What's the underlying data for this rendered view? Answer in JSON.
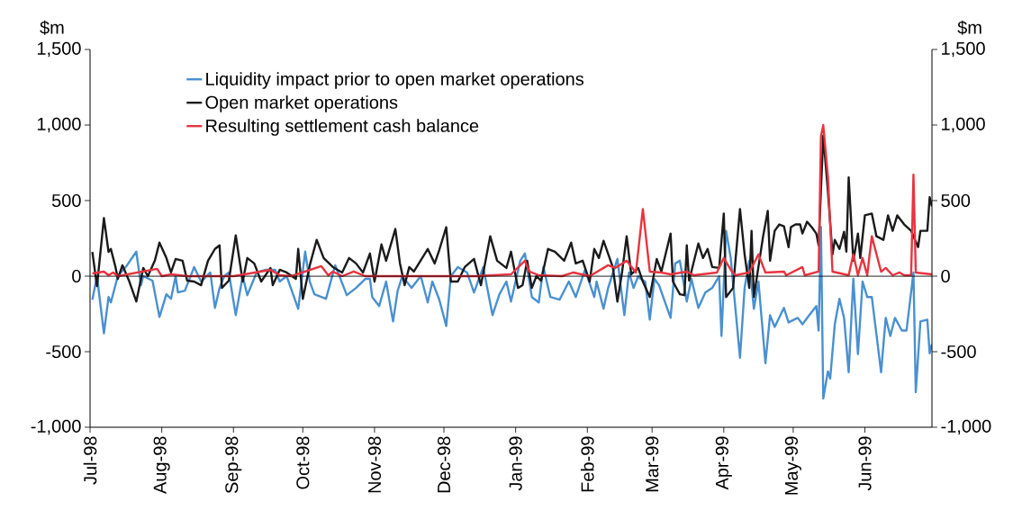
{
  "chart_data": {
    "type": "line",
    "ylabel": "$m",
    "y2label": "$m",
    "xlim": [
      "1998-07-01",
      "1999-06-30"
    ],
    "xticks": [
      {
        "value": "1998-07-01",
        "label": "Jul-98"
      },
      {
        "value": "1998-08-01",
        "label": "Aug-98"
      },
      {
        "value": "1998-09-01",
        "label": "Sep-98"
      },
      {
        "value": "1998-10-01",
        "label": "Oct-98"
      },
      {
        "value": "1998-11-01",
        "label": "Nov-98"
      },
      {
        "value": "1998-12-01",
        "label": "Dec-98"
      },
      {
        "value": "1999-01-01",
        "label": "Jan-99"
      },
      {
        "value": "1999-02-01",
        "label": "Feb-99"
      },
      {
        "value": "1999-03-01",
        "label": "Mar-99"
      },
      {
        "value": "1999-04-01",
        "label": "Apr-99"
      },
      {
        "value": "1999-05-01",
        "label": "May-99"
      },
      {
        "value": "1999-06-01",
        "label": "Jun-99"
      }
    ],
    "ylim": [
      -1000,
      1500
    ],
    "yticks": [
      {
        "value": -1000,
        "label": "-1,000"
      },
      -500,
      0,
      500,
      {
        "value": 1000,
        "label": "1,000"
      },
      {
        "value": 1500,
        "label": "1,500"
      }
    ],
    "y2lim": [
      -1000,
      1500
    ],
    "y2ticks": [
      {
        "value": -1000,
        "label": "-1,000"
      },
      -500,
      0,
      500,
      {
        "value": 1000,
        "label": "1,000"
      },
      {
        "value": 1500,
        "label": "1,500"
      }
    ],
    "ref_lines": [
      {
        "axis": "y",
        "value": 0,
        "color": "#000000"
      }
    ],
    "legend": "top left",
    "marker": "none",
    "line_style": "solid",
    "grid": false,
    "series": [
      {
        "name": "Liquidity impact prior to open market operations",
        "color": "#4a90d0",
        "x": [
          "1998-07-02",
          "1998-07-04",
          "1998-07-07",
          "1998-07-09",
          "1998-07-10",
          "1998-07-13",
          "1998-07-17",
          "1998-07-21",
          "1998-07-23",
          "1998-07-24",
          "1998-07-28",
          "1998-07-31",
          "1998-08-03",
          "1998-08-05",
          "1998-08-07",
          "1998-08-08",
          "1998-08-11",
          "1998-08-15",
          "1998-08-18",
          "1998-08-22",
          "1998-08-24",
          "1998-08-26",
          "1998-08-28",
          "1998-08-30",
          "1998-09-02",
          "1998-09-05",
          "1998-09-07",
          "1998-09-11",
          "1998-09-15",
          "1998-09-19",
          "1998-09-21",
          "1998-09-24",
          "1998-09-29",
          "1998-10-02",
          "1998-10-04",
          "1998-10-06",
          "1998-10-11",
          "1998-10-15",
          "1998-10-20",
          "1998-10-24",
          "1998-10-28",
          "1998-10-30",
          "1998-10-31",
          "1998-11-03",
          "1998-11-06",
          "1998-11-09",
          "1998-11-11",
          "1998-11-13",
          "1998-11-17",
          "1998-11-21",
          "1998-11-24",
          "1998-11-26",
          "1998-11-29",
          "1998-12-02",
          "1998-12-04",
          "1998-12-07",
          "1998-12-11",
          "1998-12-14",
          "1998-12-18",
          "1998-12-22",
          "1998-12-25",
          "1998-12-28",
          "1998-12-30",
          "1999-01-03",
          "1999-01-05",
          "1999-01-08",
          "1999-01-11",
          "1999-01-13",
          "1999-01-16",
          "1999-01-20",
          "1999-01-24",
          "1999-01-27",
          "1999-01-31",
          "1999-02-04",
          "1999-02-05",
          "1999-02-08",
          "1999-02-10",
          "1999-02-14",
          "1999-02-17",
          "1999-02-19",
          "1999-02-21",
          "1999-02-23",
          "1999-02-24",
          "1999-02-26",
          "1999-02-28",
          "1999-03-02",
          "1999-03-04",
          "1999-03-09",
          "1999-03-11",
          "1999-03-13",
          "1999-03-16",
          "1999-03-18",
          "1999-03-21",
          "1999-03-24",
          "1999-03-27",
          "1999-03-30",
          "1999-03-31",
          "1999-04-02",
          "1999-04-04",
          "1999-04-08",
          "1999-04-10",
          "1999-04-12",
          "1999-04-14",
          "1999-04-16",
          "1999-04-19",
          "1999-04-21",
          "1999-04-23",
          "1999-04-27",
          "1999-04-29",
          "1999-05-03",
          "1999-05-05",
          "1999-05-08",
          "1999-05-11",
          "1999-05-12",
          "1999-05-13",
          "1999-05-14",
          "1999-05-16",
          "1999-05-17",
          "1999-05-19",
          "1999-05-21",
          "1999-05-23",
          "1999-05-25",
          "1999-05-27",
          "1999-05-29",
          "1999-05-31",
          "1999-06-02",
          "1999-06-04",
          "1999-06-08",
          "1999-06-10",
          "1999-06-12",
          "1999-06-14",
          "1999-06-17",
          "1999-06-19",
          "1999-06-22",
          "1999-06-23",
          "1999-06-25",
          "1999-06-28",
          "1999-06-29",
          "1999-06-30"
        ],
        "values": [
          -156,
          0,
          -378,
          -138,
          -174,
          0,
          72,
          162,
          -60,
          0,
          -30,
          -270,
          -120,
          -150,
          0,
          -108,
          -96,
          60,
          -36,
          24,
          -210,
          -78,
          0,
          24,
          -258,
          0,
          -126,
          24,
          42,
          42,
          -36,
          0,
          -216,
          162,
          -36,
          -120,
          -150,
          72,
          -126,
          -78,
          -18,
          -18,
          -138,
          -198,
          -36,
          -300,
          -96,
          0,
          -78,
          0,
          -174,
          -36,
          -156,
          -330,
          0,
          60,
          24,
          -108,
          60,
          -258,
          -120,
          -36,
          -168,
          102,
          150,
          -138,
          -174,
          60,
          -138,
          -156,
          -36,
          -138,
          42,
          -138,
          -36,
          -216,
          -78,
          114,
          -258,
          24,
          -78,
          0,
          -18,
          -36,
          -288,
          -18,
          -60,
          -276,
          84,
          102,
          -168,
          -18,
          -210,
          -108,
          -78,
          0,
          -396,
          300,
          120,
          -540,
          -78,
          102,
          -216,
          -36,
          -576,
          -258,
          -336,
          -210,
          -306,
          -276,
          -318,
          -258,
          -198,
          -360,
          324,
          -810,
          -630,
          -678,
          -318,
          -150,
          -276,
          -636,
          -18,
          -516,
          -36,
          -138,
          -138,
          -636,
          -276,
          -396,
          -276,
          -360,
          -360,
          24,
          -768,
          -300,
          -288,
          -510,
          -450
        ]
      },
      {
        "name": "Open market operations",
        "color": "#1a1a1a",
        "x": [
          "1998-07-02",
          "1998-07-04",
          "1998-07-07",
          "1998-07-09",
          "1998-07-10",
          "1998-07-12",
          "1998-07-13",
          "1998-07-15",
          "1998-07-18",
          "1998-07-21",
          "1998-07-24",
          "1998-07-26",
          "1998-07-29",
          "1998-07-31",
          "1998-08-03",
          "1998-08-05",
          "1998-08-07",
          "1998-08-10",
          "1998-08-12",
          "1998-08-15",
          "1998-08-18",
          "1998-08-21",
          "1998-08-24",
          "1998-08-26",
          "1998-08-27",
          "1998-08-30",
          "1998-09-02",
          "1998-09-05",
          "1998-09-07",
          "1998-09-10",
          "1998-09-13",
          "1998-09-17",
          "1998-09-18",
          "1998-09-21",
          "1998-09-24",
          "1998-09-28",
          "1998-09-29",
          "1998-10-01",
          "1998-10-04",
          "1998-10-07",
          "1998-10-10",
          "1998-10-14",
          "1998-10-18",
          "1998-10-21",
          "1998-10-24",
          "1998-10-27",
          "1998-10-30",
          "1998-11-01",
          "1998-11-04",
          "1998-11-06",
          "1998-11-10",
          "1998-11-12",
          "1998-11-14",
          "1998-11-16",
          "1998-11-18",
          "1998-11-24",
          "1998-11-27",
          "1998-11-29",
          "1998-12-02",
          "1998-12-04",
          "1998-12-07",
          "1998-12-10",
          "1998-12-14",
          "1998-12-17",
          "1998-12-21",
          "1998-12-24",
          "1998-12-28",
          "1998-12-30",
          "1999-01-02",
          "1999-01-04",
          "1999-01-06",
          "1999-01-08",
          "1999-01-10",
          "1999-01-12",
          "1999-01-15",
          "1999-01-18",
          "1999-01-22",
          "1999-01-25",
          "1999-01-27",
          "1999-01-30",
          "1999-02-02",
          "1999-02-04",
          "1999-02-06",
          "1999-02-08",
          "1999-02-12",
          "1999-02-14",
          "1999-02-16",
          "1999-02-18",
          "1999-02-20",
          "1999-02-23",
          "1999-02-25",
          "1999-02-28",
          "1999-03-03",
          "1999-03-05",
          "1999-03-09",
          "1999-03-10",
          "1999-03-13",
          "1999-03-15",
          "1999-03-16",
          "1999-03-17",
          "1999-03-21",
          "1999-03-23",
          "1999-03-25",
          "1999-03-27",
          "1999-03-30",
          "1999-04-01",
          "1999-04-02",
          "1999-04-05",
          "1999-04-08",
          "1999-04-10",
          "1999-04-12",
          "1999-04-13",
          "1999-04-14",
          "1999-04-18",
          "1999-04-20",
          "1999-04-21",
          "1999-04-23",
          "1999-04-25",
          "1999-04-27",
          "1999-04-29",
          "1999-04-30",
          "1999-05-02",
          "1999-05-04",
          "1999-05-05",
          "1999-05-07",
          "1999-05-09",
          "1999-05-11",
          "1999-05-12",
          "1999-05-14",
          "1999-05-16",
          "1999-05-18",
          "1999-05-19",
          "1999-05-21",
          "1999-05-23",
          "1999-05-24",
          "1999-05-25",
          "1999-05-27",
          "1999-05-29",
          "1999-05-30",
          "1999-06-01",
          "1999-06-04",
          "1999-06-06",
          "1999-06-09",
          "1999-06-11",
          "1999-06-13",
          "1999-06-15",
          "1999-06-18",
          "1999-06-21",
          "1999-06-24",
          "1999-06-25",
          "1999-06-28",
          "1999-06-29",
          "1999-06-30"
        ],
        "values": [
          160,
          -66,
          384,
          160,
          180,
          60,
          -18,
          72,
          -36,
          -168,
          54,
          0,
          102,
          222,
          120,
          24,
          114,
          102,
          -30,
          -36,
          -60,
          102,
          180,
          204,
          -78,
          -30,
          270,
          -36,
          120,
          84,
          -36,
          54,
          -60,
          42,
          24,
          -18,
          180,
          -150,
          72,
          240,
          120,
          60,
          24,
          120,
          84,
          24,
          150,
          -36,
          210,
          102,
          312,
          84,
          -60,
          60,
          30,
          180,
          84,
          174,
          324,
          -36,
          -36,
          60,
          114,
          -60,
          264,
          102,
          54,
          162,
          -78,
          -60,
          102,
          -78,
          0,
          -30,
          180,
          162,
          102,
          222,
          84,
          102,
          -36,
          180,
          120,
          234,
          60,
          -168,
          24,
          264,
          12,
          54,
          -36,
          -138,
          114,
          30,
          282,
          -36,
          -120,
          -126,
          204,
          -30,
          216,
          120,
          180,
          60,
          54,
          414,
          -138,
          -78,
          444,
          144,
          -78,
          300,
          -138,
          264,
          432,
          102,
          300,
          342,
          330,
          192,
          324,
          342,
          342,
          282,
          360,
          324,
          282,
          204,
          930,
          564,
          144,
          240,
          180,
          294,
          162,
          654,
          102,
          282,
          120,
          402,
          414,
          264,
          240,
          402,
          300,
          402,
          342,
          300,
          192,
          300,
          300,
          522,
          462
        ]
      },
      {
        "name": "Resulting settlement cash balance",
        "color": "#e8343f",
        "x": [
          "1998-07-02",
          "1998-07-07",
          "1998-07-09",
          "1998-07-11",
          "1998-07-13",
          "1998-07-30",
          "1998-08-01",
          "1998-08-05",
          "1998-08-12",
          "1998-08-18",
          "1998-09-01",
          "1998-09-08",
          "1998-09-17",
          "1998-09-21",
          "1998-09-26",
          "1998-10-09",
          "1998-10-12",
          "1998-10-14",
          "1998-10-18",
          "1998-10-23",
          "1998-10-28",
          "1998-11-15",
          "1998-12-15",
          "1998-12-30",
          "1999-01-05",
          "1999-01-07",
          "1999-01-11",
          "1999-01-21",
          "1999-01-26",
          "1999-02-02",
          "1999-02-10",
          "1999-02-13",
          "1999-02-18",
          "1999-02-22",
          "1999-02-25",
          "1999-02-28",
          "1999-03-05",
          "1999-03-09",
          "1999-03-16",
          "1999-03-19",
          "1999-03-29",
          "1999-04-01",
          "1999-04-04",
          "1999-04-06",
          "1999-04-12",
          "1999-04-16",
          "1999-04-19",
          "1999-04-27",
          "1999-04-28",
          "1999-05-05",
          "1999-05-06",
          "1999-05-12",
          "1999-05-13",
          "1999-05-14",
          "1999-05-16",
          "1999-05-18",
          "1999-05-25",
          "1999-05-27",
          "1999-05-29",
          "1999-05-31",
          "1999-06-02",
          "1999-06-04",
          "1999-06-08",
          "1999-06-10",
          "1999-06-13",
          "1999-06-16",
          "1999-06-18",
          "1999-06-21",
          "1999-06-22",
          "1999-06-23",
          "1999-06-30"
        ],
        "values": [
          18,
          30,
          6,
          24,
          0,
          48,
          0,
          12,
          0,
          0,
          0,
          18,
          42,
          6,
          0,
          66,
          6,
          30,
          0,
          30,
          0,
          0,
          0,
          12,
          102,
          30,
          6,
          0,
          24,
          0,
          72,
          54,
          102,
          24,
          444,
          30,
          24,
          12,
          30,
          6,
          24,
          120,
          42,
          6,
          24,
          144,
          24,
          30,
          6,
          60,
          6,
          30,
          924,
          1000,
          660,
          30,
          6,
          144,
          6,
          120,
          6,
          264,
          30,
          54,
          6,
          24,
          6,
          6,
          672,
          24,
          12
        ]
      }
    ]
  }
}
